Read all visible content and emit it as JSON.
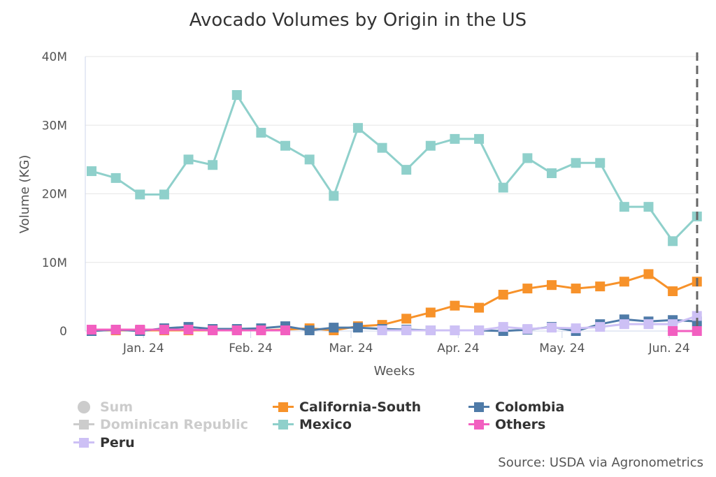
{
  "chart_data": {
    "type": "line",
    "title": "Avocado Volumes by Origin in the US",
    "xlabel": "Weeks",
    "ylabel": "Volume (KG)",
    "ylim": [
      0,
      40000000
    ],
    "yticks": [
      "0",
      "10M",
      "20M",
      "30M",
      "40M"
    ],
    "xtick_labels": [
      "Jan. 24",
      "Feb. 24",
      "Mar. 24",
      "Apr. 24",
      "May. 24",
      "Jun. 24"
    ],
    "xtick_dates": [
      "2024-01-01",
      "2024-02-01",
      "2024-03-01",
      "2024-04-01",
      "2024-05-01",
      "2024-06-01"
    ],
    "x_start": "2023-12-17",
    "x_step_days": 7,
    "grid": "horizontal",
    "legend_position": "bottom",
    "source": "Source: USDA via Agronometrics",
    "series": [
      {
        "name": "Sum",
        "color": "#cccccc",
        "visible": false,
        "values": []
      },
      {
        "name": "California-South",
        "color": "#f7922a",
        "visible": true,
        "values": [
          0.1,
          0.1,
          0.1,
          0.1,
          0.1,
          0.1,
          0.1,
          0.1,
          0.2,
          0.4,
          0.1,
          0.7,
          0.9,
          1.8,
          2.7,
          3.7,
          3.4,
          5.3,
          6.2,
          6.7,
          6.2,
          6.5,
          7.2,
          8.3,
          5.8,
          7.2
        ]
      },
      {
        "name": "Colombia",
        "color": "#4f7ba8",
        "visible": true,
        "values": [
          0,
          0.2,
          0,
          0.4,
          0.6,
          0.3,
          0.3,
          0.4,
          0.7,
          0.1,
          0.5,
          0.5,
          0.3,
          0.2,
          0.1,
          0.1,
          0.1,
          0,
          0.2,
          0.6,
          0,
          1.0,
          1.7,
          1.4,
          1.6,
          1.4
        ]
      },
      {
        "name": "Dominican Republic",
        "color": "#cccccc",
        "visible": false,
        "values": []
      },
      {
        "name": "Mexico",
        "color": "#8fd0cb",
        "visible": true,
        "values": [
          23.3,
          22.3,
          19.9,
          19.9,
          25.0,
          24.2,
          34.4,
          28.9,
          27.0,
          25.0,
          19.7,
          29.6,
          26.7,
          23.5,
          27.0,
          28.0,
          28.0,
          20.9,
          25.2,
          23.0,
          24.5,
          24.5,
          18.1,
          18.1,
          13.1,
          16.7
        ]
      },
      {
        "name": "Others",
        "color": "#f25fc0",
        "visible": true,
        "values": [
          0.2,
          0.2,
          0.2,
          0.2,
          0.2,
          0.1,
          0.1,
          0.1,
          0.1,
          null,
          null,
          null,
          null,
          null,
          null,
          null,
          null,
          null,
          null,
          null,
          null,
          null,
          null,
          null,
          0,
          0
        ]
      },
      {
        "name": "Peru",
        "color": "#cdc0f5",
        "visible": true,
        "values": [
          null,
          null,
          null,
          null,
          null,
          null,
          null,
          null,
          null,
          null,
          null,
          null,
          0.1,
          0.1,
          0.1,
          0.1,
          0.1,
          0.6,
          0.3,
          0.5,
          0.4,
          0.6,
          1.0,
          1.0,
          1.0,
          2.2
        ]
      }
    ],
    "value_unit": "M"
  }
}
